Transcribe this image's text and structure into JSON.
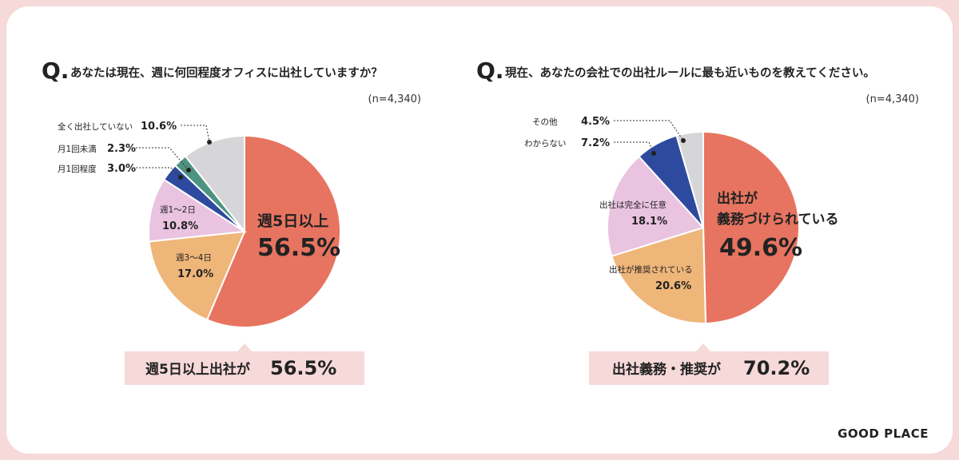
{
  "brand": "GOOD PLACE",
  "chart_data": [
    {
      "type": "pie",
      "question_mark": "Q.",
      "title": "あなたは現在、週に何回程度オフィスに出社していますか？",
      "sample": "(n=4,340)",
      "slices": [
        {
          "label": "週5日以上",
          "value": 56.5,
          "value_label": "56.5%",
          "color": "#e77460",
          "label_pos": "inside-large"
        },
        {
          "label": "週3〜4日",
          "value": 17.0,
          "value_label": "17.0%",
          "color": "#efb679",
          "label_pos": "inside"
        },
        {
          "label": "週1〜2日",
          "value": 10.8,
          "value_label": "10.8%",
          "color": "#eac3e1",
          "label_pos": "inside"
        },
        {
          "label": "月1回程度",
          "value": 3.0,
          "value_label": "3.0%",
          "color": "#2e4a9e",
          "label_pos": "outside"
        },
        {
          "label": "月1回未満",
          "value": 2.3,
          "value_label": "2.3%",
          "color": "#4d9382",
          "label_pos": "outside"
        },
        {
          "label": "全く出社していない",
          "value": 10.6,
          "value_label": "10.6%",
          "color": "#d6d6d8",
          "label_pos": "outside"
        }
      ],
      "summary": {
        "text": "週5日以上出社が",
        "value": "56.5%"
      }
    },
    {
      "type": "pie",
      "question_mark": "Q.",
      "title": "現在、あなたの会社での出社ルールに最も近いものを教えてください。",
      "sample": "(n=4,340)",
      "slices": [
        {
          "label": "出社が\n義務づけられている",
          "value": 49.6,
          "value_label": "49.6%",
          "color": "#e77460",
          "label_pos": "inside-large"
        },
        {
          "label": "出社が推奨されている",
          "value": 20.6,
          "value_label": "20.6%",
          "color": "#efb679",
          "label_pos": "inside"
        },
        {
          "label": "出社は完全に任意",
          "value": 18.1,
          "value_label": "18.1%",
          "color": "#eac3e1",
          "label_pos": "inside"
        },
        {
          "label": "わからない",
          "value": 7.2,
          "value_label": "7.2%",
          "color": "#2e4a9e",
          "label_pos": "outside"
        },
        {
          "label": "その他",
          "value": 4.5,
          "value_label": "4.5%",
          "color": "#d6d6d8",
          "label_pos": "outside"
        }
      ],
      "summary": {
        "text": "出社義務・推奨が",
        "value": "70.2%"
      }
    }
  ]
}
